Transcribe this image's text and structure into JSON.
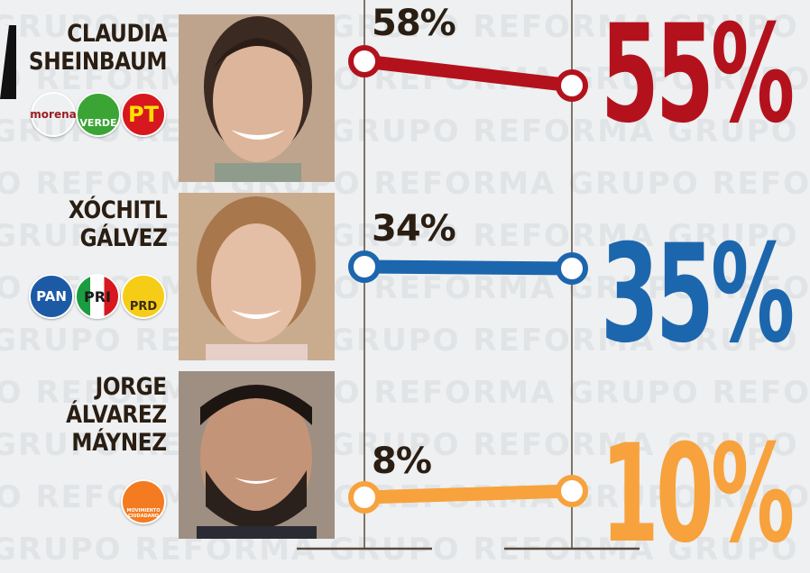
{
  "watermark": "GRUPO REFORMA",
  "colors": {
    "claudia": "#b3121d",
    "xochitl": "#1c66ad",
    "jorge": "#f7a23c",
    "axis": "#5a4a3c",
    "text": "#2a1d12"
  },
  "candidates": [
    {
      "name_lines": [
        "CLAUDIA",
        "SHEINBAUM"
      ],
      "parties": [
        {
          "label": "morena",
          "icon": "morena-logo-icon",
          "bg": "#ffffff",
          "fg": "#9b1c23"
        },
        {
          "label": "VERDE",
          "icon": "verde-logo-icon",
          "bg": "#3aa535",
          "fg": "#ffffff"
        },
        {
          "label": "PT",
          "icon": "pt-logo-icon",
          "bg": "#d7181f",
          "fg": "#ffe000"
        }
      ]
    },
    {
      "name_lines": [
        "XÓCHITL",
        "GÁLVEZ"
      ],
      "parties": [
        {
          "label": "PAN",
          "icon": "pan-logo-icon",
          "bg": "#1d5aa6",
          "fg": "#ffffff"
        },
        {
          "label": "PRI",
          "icon": "pri-logo-icon",
          "bg": "#ffffff",
          "fg": "#1a1a1a"
        },
        {
          "label": "PRD",
          "icon": "prd-logo-icon",
          "bg": "#f6cd16",
          "fg": "#3a2a10"
        }
      ]
    },
    {
      "name_lines": [
        "JORGE",
        "ÁLVAREZ",
        "MÁYNEZ"
      ],
      "parties": [
        {
          "label": "MOVIMIENTO CIUDADANO",
          "icon": "mc-logo-icon",
          "bg": "#f47b20",
          "fg": "#ffffff"
        }
      ]
    }
  ],
  "chart_data": {
    "type": "line",
    "x": [
      "start",
      "end"
    ],
    "series": [
      {
        "name": "CLAUDIA SHEINBAUM",
        "values": [
          58,
          55
        ],
        "start_label": "58%",
        "end_label": "55%",
        "color": "#b3121d"
      },
      {
        "name": "XÓCHITL GÁLVEZ",
        "values": [
          34,
          35
        ],
        "start_label": "34%",
        "end_label": "35%",
        "color": "#1c66ad"
      },
      {
        "name": "JORGE ÁLVAREZ MÁYNEZ",
        "values": [
          8,
          10
        ],
        "start_label": "8%",
        "end_label": "10%",
        "color": "#f7a23c"
      }
    ],
    "grid": false,
    "legend": "none"
  }
}
